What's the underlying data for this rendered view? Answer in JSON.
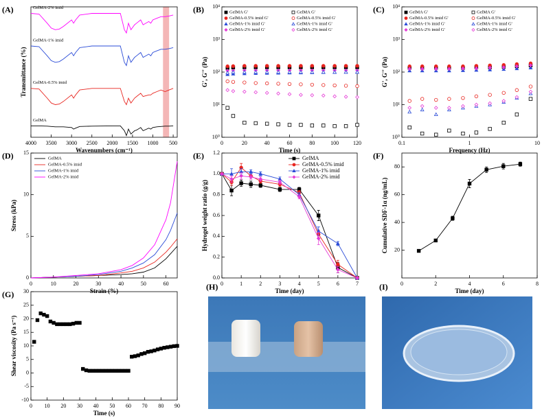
{
  "chart_data": [
    {
      "type": "line",
      "panel": "(A)",
      "xlabel": "Wavenumbers (cm⁻¹)",
      "ylabel": "Transmittance (%)",
      "xlim": [
        4000,
        400
      ],
      "ylim": [
        0,
        4
      ],
      "xticks": [
        4000,
        3500,
        3000,
        2500,
        2000,
        1500,
        1000,
        500
      ],
      "highlight": [
        750,
        600
      ],
      "highlight_color": "#f4b6b6",
      "legend": "inline",
      "x": [
        4000,
        3800,
        3600,
        3500,
        3400,
        3300,
        3200,
        3000,
        2950,
        2900,
        2800,
        2500,
        2000,
        1800,
        1700,
        1650,
        1600,
        1540,
        1450,
        1400,
        1300,
        1240,
        1100,
        1050,
        1000,
        900,
        800,
        700,
        600,
        500
      ],
      "series": [
        {
          "name": "GelMA-2% imid",
          "color": "#ff00ff",
          "line": true,
          "values": [
            3.8,
            3.78,
            3.5,
            3.35,
            3.3,
            3.32,
            3.4,
            3.6,
            3.5,
            3.6,
            3.75,
            3.8,
            3.8,
            3.8,
            3.3,
            3.2,
            3.5,
            3.3,
            3.45,
            3.5,
            3.6,
            3.45,
            3.55,
            3.5,
            3.6,
            3.65,
            3.7,
            3.7,
            3.72,
            3.75
          ]
        },
        {
          "name": "GelMA-1% imid",
          "color": "#2a4bd7",
          "line": true,
          "values": [
            2.8,
            2.78,
            2.5,
            2.35,
            2.3,
            2.32,
            2.4,
            2.6,
            2.5,
            2.6,
            2.75,
            2.8,
            2.8,
            2.8,
            2.3,
            2.2,
            2.5,
            2.3,
            2.45,
            2.5,
            2.6,
            2.45,
            2.55,
            2.5,
            2.6,
            2.65,
            2.7,
            2.7,
            2.72,
            2.75
          ]
        },
        {
          "name": "GelMA-0.5% imid",
          "color": "#e8251f",
          "line": true,
          "values": [
            1.5,
            1.48,
            1.2,
            1.05,
            1.0,
            1.02,
            1.1,
            1.3,
            1.2,
            1.3,
            1.45,
            1.5,
            1.5,
            1.5,
            1.1,
            1.0,
            1.2,
            1.05,
            1.2,
            1.25,
            1.35,
            1.25,
            1.3,
            1.3,
            1.35,
            1.4,
            1.45,
            1.4,
            1.45,
            1.5
          ]
        },
        {
          "name": "GelMA",
          "color": "#000000",
          "line": true,
          "values": [
            0.35,
            0.35,
            0.34,
            0.33,
            0.32,
            0.32,
            0.32,
            0.3,
            0.25,
            0.28,
            0.33,
            0.34,
            0.35,
            0.35,
            0.2,
            0.05,
            0.25,
            0.1,
            0.2,
            0.22,
            0.3,
            0.2,
            0.28,
            0.25,
            0.3,
            0.32,
            0.33,
            0.34,
            0.34,
            0.35
          ]
        }
      ]
    },
    {
      "type": "scatter",
      "panel": "(B)",
      "xlabel": "Time (s)",
      "ylabel": "G', G'' (Pa)",
      "xlim": [
        0,
        120
      ],
      "ylim": [
        1,
        10000
      ],
      "ylog": true,
      "legend": "two-column",
      "xticks": [
        0,
        20,
        40,
        60,
        80,
        100,
        120
      ],
      "yticks": [
        {
          "value": 1,
          "label": "10⁰"
        },
        {
          "value": 10,
          "label": "10¹"
        },
        {
          "value": 100,
          "label": "10²"
        },
        {
          "value": 1000,
          "label": "10³"
        },
        {
          "value": 10000,
          "label": "10⁴"
        }
      ],
      "x": [
        5,
        10,
        20,
        30,
        40,
        50,
        60,
        70,
        80,
        90,
        100,
        110,
        120
      ],
      "series": [
        {
          "name": "GelMA G'",
          "color": "#000000",
          "marker": "square",
          "filled": true,
          "values": [
            135,
            138,
            140,
            140,
            140,
            140,
            140,
            140,
            140,
            140,
            140,
            140,
            140
          ]
        },
        {
          "name": "GelMA-0.5% imid G'",
          "color": "#e8251f",
          "marker": "circle",
          "filled": true,
          "values": [
            150,
            152,
            155,
            155,
            155,
            155,
            155,
            155,
            155,
            155,
            155,
            155,
            155
          ]
        },
        {
          "name": "GelMA-1% imid  G'",
          "color": "#2a4bd7",
          "marker": "triangle",
          "filled": true,
          "values": [
            85,
            88,
            90,
            92,
            93,
            94,
            95,
            96,
            97,
            98,
            99,
            100,
            100
          ]
        },
        {
          "name": "GelMA-2% imid  G'",
          "color": "#e53ad6",
          "marker": "diamond",
          "filled": true,
          "values": [
            110,
            110,
            112,
            112,
            112,
            112,
            112,
            112,
            112,
            112,
            112,
            112,
            112
          ]
        },
        {
          "name": "GelMA G'",
          "color": "#000000",
          "marker": "square",
          "filled": false,
          "values": [
            8,
            4.5,
            2.8,
            2.7,
            2.6,
            2.5,
            2.4,
            2.4,
            2.3,
            2.3,
            2.2,
            2.2,
            2.4
          ]
        },
        {
          "name": "GelMA-0.5% imid G'",
          "color": "#e8251f",
          "marker": "circle",
          "filled": false,
          "values": [
            52,
            50,
            48,
            46,
            45,
            44,
            43,
            42,
            41,
            40,
            39,
            38,
            37
          ]
        },
        {
          "name": "GelMA-1% imid  G'",
          "color": "#2a4bd7",
          "marker": "triangle",
          "filled": false,
          "values": [
            95,
            100,
            100,
            100,
            100,
            100,
            100,
            100,
            100,
            100,
            100,
            100,
            100
          ]
        },
        {
          "name": "GelMA-2% imid  G'",
          "color": "#e53ad6",
          "marker": "diamond",
          "filled": false,
          "values": [
            28,
            26,
            25,
            24,
            23,
            22,
            21,
            20,
            19.5,
            19,
            18,
            17.5,
            17
          ]
        }
      ]
    },
    {
      "type": "scatter",
      "panel": "(C)",
      "xlabel": "Frequency (Hz)",
      "ylabel": "G', G'' (Pa)",
      "xlim": [
        0.1,
        10
      ],
      "xlog": true,
      "ylim": [
        1,
        10000
      ],
      "ylog": true,
      "legend": "two-column",
      "xticks": [
        0.1,
        1,
        10
      ],
      "yticks": [
        {
          "value": 1,
          "label": "10⁰"
        },
        {
          "value": 10,
          "label": "10¹"
        },
        {
          "value": 100,
          "label": "10²"
        },
        {
          "value": 1000,
          "label": "10³"
        },
        {
          "value": 10000,
          "label": "10⁴"
        }
      ],
      "x": [
        0.13,
        0.2,
        0.32,
        0.5,
        0.8,
        1.26,
        2,
        3.2,
        5,
        8
      ],
      "series": [
        {
          "name": "GelMA G'",
          "color": "#000000",
          "marker": "square",
          "filled": true,
          "values": [
            135,
            135,
            135,
            135,
            135,
            140,
            140,
            145,
            150,
            160
          ]
        },
        {
          "name": "GelMA-0.5% imid G'",
          "color": "#e8251f",
          "marker": "circle",
          "filled": true,
          "values": [
            150,
            150,
            150,
            150,
            150,
            155,
            160,
            165,
            175,
            185
          ]
        },
        {
          "name": "GelMA-1% imid  G'",
          "color": "#2a4bd7",
          "marker": "triangle",
          "filled": true,
          "values": [
            110,
            110,
            110,
            110,
            112,
            115,
            118,
            122,
            128,
            135
          ]
        },
        {
          "name": "GelMA-2% imid  G'",
          "color": "#e53ad6",
          "marker": "diamond",
          "filled": true,
          "values": [
            125,
            125,
            125,
            125,
            128,
            130,
            135,
            140,
            150,
            160
          ]
        },
        {
          "name": "GelMA G'",
          "color": "#000000",
          "marker": "square",
          "filled": false,
          "values": [
            2,
            1.3,
            1.2,
            1.6,
            1.3,
            1.4,
            1.8,
            2.8,
            5,
            15
          ]
        },
        {
          "name": "GelMA-0.5% imid G'",
          "color": "#e8251f",
          "marker": "circle",
          "filled": false,
          "values": [
            13,
            15,
            14,
            15,
            16,
            18,
            20,
            23,
            28,
            36
          ]
        },
        {
          "name": "GelMA-1% imid  G'",
          "color": "#2a4bd7",
          "marker": "triangle",
          "filled": false,
          "values": [
            6,
            7,
            5,
            7,
            8,
            9,
            10,
            12,
            16,
            22
          ]
        },
        {
          "name": "GelMA-2% imid  G'",
          "color": "#e53ad6",
          "marker": "diamond",
          "filled": false,
          "values": [
            8,
            9,
            8,
            8,
            9,
            10,
            11,
            13,
            17,
            25
          ]
        }
      ]
    },
    {
      "type": "line",
      "panel": "(D)",
      "xlabel": "Strain (%)",
      "ylabel": "Stress (kPa)",
      "xlim": [
        0,
        65
      ],
      "ylim": [
        0,
        15
      ],
      "legend": "top-left",
      "xticks": [
        0,
        10,
        20,
        30,
        40,
        50,
        60
      ],
      "yticks": [
        0,
        5,
        10,
        15
      ],
      "x": [
        0,
        10,
        20,
        30,
        40,
        45,
        50,
        55,
        60,
        62,
        65
      ],
      "series": [
        {
          "name": "GelMA",
          "color": "#000000",
          "line": true,
          "values": [
            0,
            0.1,
            0.2,
            0.3,
            0.4,
            0.5,
            0.7,
            1.2,
            2.3,
            2.9,
            3.8
          ]
        },
        {
          "name": "GelMA-0.5% imid",
          "color": "#e8251f",
          "line": true,
          "values": [
            0,
            0.1,
            0.2,
            0.3,
            0.6,
            0.8,
            1.2,
            1.9,
            3.1,
            3.7,
            4.7
          ]
        },
        {
          "name": "GelMA-1% imid",
          "color": "#2a4bd7",
          "line": true,
          "values": [
            0,
            0.1,
            0.2,
            0.4,
            0.8,
            1.2,
            1.8,
            2.8,
            4.6,
            5.7,
            7.8
          ]
        },
        {
          "name": "GelMA-2% imid",
          "color": "#ff00ff",
          "line": true,
          "values": [
            0,
            0.1,
            0.3,
            0.5,
            1,
            1.5,
            2.4,
            4,
            7,
            9,
            14
          ]
        }
      ]
    },
    {
      "type": "line",
      "panel": "(E)",
      "xlabel": "Time (day)",
      "ylabel": "Hydrogel weight ratio (g/g)",
      "xlim": [
        0,
        7
      ],
      "ylim": [
        0,
        1.2
      ],
      "legend": "top-right",
      "xticks": [
        0,
        1,
        2,
        3,
        4,
        5,
        6,
        7
      ],
      "yticks": [
        {
          "value": 0,
          "label": "0.0"
        },
        0.2,
        0.4,
        0.6,
        0.8,
        {
          "value": 1,
          "label": "1.0"
        },
        1.2
      ],
      "x": [
        0,
        0.5,
        1,
        1.5,
        2,
        3,
        4,
        5,
        6,
        7
      ],
      "series": [
        {
          "name": "GelMA",
          "color": "#000000",
          "line": true,
          "marker": "square",
          "filled": true,
          "values": [
            1,
            0.84,
            0.91,
            0.9,
            0.89,
            0.85,
            0.85,
            0.6,
            0.1,
            0
          ],
          "errors": [
            0,
            0.05,
            0.03,
            0.03,
            0.02,
            0.02,
            0.02,
            0.05,
            0.05,
            0
          ]
        },
        {
          "name": "GelMA-0.5% imid",
          "color": "#e8251f",
          "line": true,
          "marker": "circle",
          "filled": true,
          "values": [
            1,
            0.92,
            1.06,
            0.98,
            0.93,
            0.9,
            0.82,
            0.42,
            0.13,
            0
          ],
          "errors": [
            0,
            0.03,
            0.04,
            0.03,
            0.02,
            0.02,
            0.02,
            0.04,
            0.04,
            0
          ]
        },
        {
          "name": "GelMA-1% imid",
          "color": "#2a4bd7",
          "line": true,
          "marker": "triangle",
          "filled": true,
          "values": [
            1,
            1,
            1.02,
            1.02,
            1,
            0.95,
            0.8,
            0.45,
            0.33,
            0
          ],
          "errors": [
            0,
            0.05,
            0.03,
            0.02,
            0.02,
            0.02,
            0.02,
            0.04,
            0.02,
            0
          ]
        },
        {
          "name": "GelMA-2% imid",
          "color": "#e53ad6",
          "line": true,
          "marker": "diamond",
          "filled": true,
          "values": [
            1,
            0.95,
            0.98,
            0.97,
            0.95,
            0.92,
            0.78,
            0.38,
            0.08,
            0
          ],
          "errors": [
            0,
            0.03,
            0.03,
            0.02,
            0.02,
            0.02,
            0.02,
            0.06,
            0.03,
            0
          ]
        }
      ]
    },
    {
      "type": "line",
      "panel": "(F)",
      "xlabel": "Time (day)",
      "ylabel": "Cumulative SDF-1α (ng/mL)",
      "xlim": [
        0,
        8
      ],
      "ylim": [
        0,
        90
      ],
      "xticks": [
        0,
        2,
        4,
        6,
        8
      ],
      "yticks": [
        20,
        40,
        60,
        80
      ],
      "x": [
        1,
        2,
        3,
        4,
        5,
        6,
        7
      ],
      "series": [
        {
          "color": "#000000",
          "line": true,
          "marker": "square",
          "filled": true,
          "values": [
            19.5,
            27,
            43,
            68,
            78,
            80.5,
            82
          ],
          "errors": [
            1,
            1,
            1.5,
            3,
            2,
            2,
            1.5
          ]
        }
      ]
    },
    {
      "type": "scatter",
      "panel": "(G)",
      "xlabel": "Time (s)",
      "ylabel": "Shear viscosity (Pa s⁻¹)",
      "xlim": [
        0,
        90
      ],
      "ylim": [
        -10,
        30
      ],
      "xticks": [
        0,
        10,
        20,
        30,
        40,
        50,
        60,
        70,
        80,
        90
      ],
      "yticks": [
        -10,
        -5,
        0,
        5,
        10,
        15,
        20,
        25,
        30
      ],
      "x": [
        2,
        4,
        6,
        8,
        10,
        12,
        14,
        16,
        18,
        20,
        22,
        24,
        26,
        28,
        30,
        32,
        34,
        36,
        38,
        40,
        42,
        44,
        46,
        48,
        50,
        52,
        54,
        56,
        58,
        60,
        62,
        64,
        66,
        68,
        70,
        72,
        74,
        76,
        78,
        80,
        82,
        84,
        86,
        88,
        90
      ],
      "series": [
        {
          "color": "#000000",
          "marker": "square",
          "filled": true,
          "values": [
            11.5,
            19.5,
            22,
            21.5,
            21,
            19,
            18.5,
            18,
            18,
            18,
            18,
            18,
            18.2,
            18.5,
            18.5,
            1.5,
            1,
            0.8,
            0.8,
            0.8,
            0.8,
            0.8,
            0.8,
            0.8,
            0.8,
            0.8,
            0.8,
            0.8,
            0.8,
            0.8,
            6,
            6.2,
            6.5,
            7,
            7.3,
            7.8,
            8,
            8.3,
            8.7,
            9,
            9.3,
            9.5,
            9.7,
            9.9,
            10
          ]
        }
      ]
    }
  ],
  "photos": [
    {
      "panel": "(H)"
    },
    {
      "panel": "(I)"
    }
  ]
}
